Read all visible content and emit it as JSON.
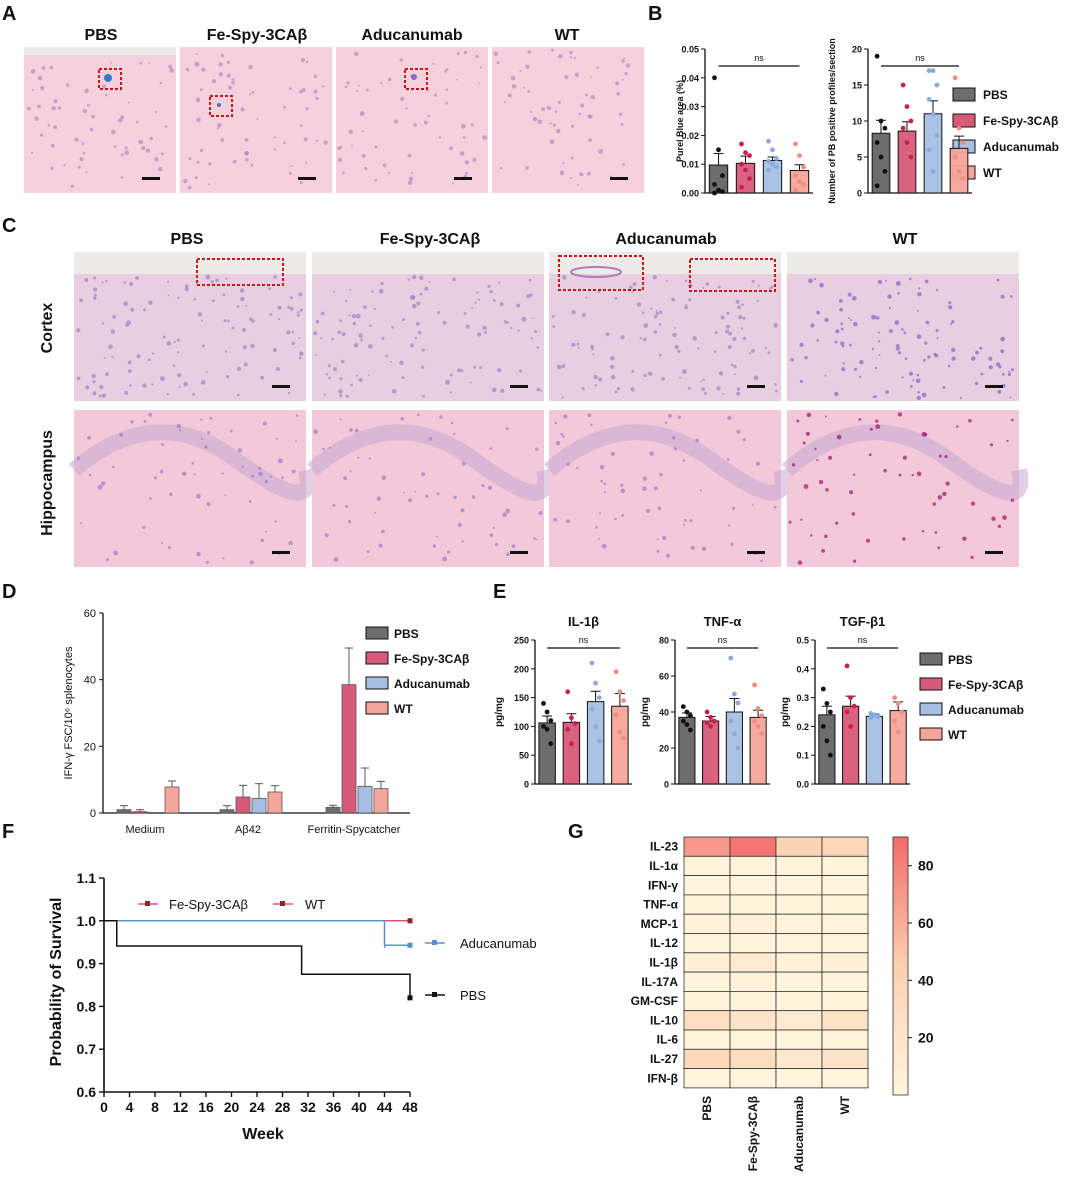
{
  "panel_letters": [
    "A",
    "B",
    "C",
    "D",
    "E",
    "F",
    "G"
  ],
  "colors": {
    "PBS": "#6d6d6d",
    "Fe": "#d85a7a",
    "Adu": "#a8bfe3",
    "WT": "#f5a59a",
    "black": "#111111",
    "hist_bg": "#f3c9d6",
    "hist_cell": "#9a7ac4"
  },
  "legend_labels": [
    "PBS",
    "Fe-Spy-3CAβ",
    "Aducanumab",
    "WT"
  ],
  "panel_a": {
    "groups": [
      "PBS",
      "Fe-Spy-3CAβ",
      "Aducanumab",
      "WT"
    ]
  },
  "panel_c": {
    "groups": [
      "PBS",
      "Fe-Spy-3CAβ",
      "Aducanumab",
      "WT"
    ],
    "rows": [
      "Cortex",
      "Hippocampus"
    ]
  },
  "chart_data": [
    {
      "id": "B1",
      "type": "bar",
      "categories": [
        "PBS",
        "Fe-Spy-3CAβ",
        "Aducanumab",
        "WT"
      ],
      "values": [
        0.0097,
        0.0103,
        0.0113,
        0.0078
      ],
      "errors": [
        0.004,
        0.0025,
        0.0012,
        0.002
      ],
      "points": [
        [
          0.04,
          0.015,
          0.006,
          0.003,
          0.001,
          0.0005,
          0.0
        ],
        [
          0.017,
          0.014,
          0.013,
          0.01,
          0.008,
          0.005,
          0.002
        ],
        [
          0.018,
          0.015,
          0.012,
          0.011,
          0.01,
          0.009,
          0.008
        ],
        [
          0.017,
          0.013,
          0.009,
          0.006,
          0.004,
          0.003,
          0.001
        ]
      ],
      "ylabel": "Purel Blue area (%)",
      "ylim": [
        0,
        0.05
      ],
      "yticks": [
        "0.00",
        "0.01",
        "0.02",
        "0.03",
        "0.04",
        "0.05"
      ],
      "annotation": "ns"
    },
    {
      "id": "B2",
      "type": "bar",
      "categories": [
        "PBS",
        "Fe-Spy-3CAβ",
        "Aducanumab",
        "WT"
      ],
      "values": [
        8.3,
        8.6,
        11.0,
        6.2
      ],
      "errors": [
        1.8,
        1.3,
        1.8,
        1.7
      ],
      "points": [
        [
          19,
          10,
          9,
          7,
          5,
          3,
          1
        ],
        [
          15,
          12,
          10,
          9,
          7,
          5
        ],
        [
          17,
          17,
          15,
          13,
          11,
          8,
          6,
          3
        ],
        [
          16,
          9,
          7,
          5,
          3,
          2
        ]
      ],
      "ylabel": "Number of PB positive profiles/section",
      "ylim": [
        0,
        20
      ],
      "yticks": [
        "0",
        "5",
        "10",
        "15",
        "20"
      ],
      "annotation": "ns"
    },
    {
      "id": "D",
      "type": "bar",
      "categories": [
        "Medium",
        "Aβ42",
        "Ferritin-Spycatcher"
      ],
      "series": [
        {
          "name": "PBS",
          "values": [
            1.0,
            1.0,
            1.7
          ],
          "errors": [
            1.2,
            1.2,
            0.6
          ]
        },
        {
          "name": "Fe-Spy-3CAβ",
          "values": [
            0.4,
            4.8,
            38.5
          ],
          "errors": [
            0.6,
            3.5,
            11.0
          ]
        },
        {
          "name": "Aducanumab",
          "values": [
            0.0,
            4.4,
            8.0
          ],
          "errors": [
            0.0,
            4.4,
            5.5
          ]
        },
        {
          "name": "WT",
          "values": [
            7.8,
            6.3,
            7.3
          ],
          "errors": [
            1.8,
            1.9,
            2.2
          ]
        }
      ],
      "ylabel": "IFN-γ FSC/10⁶ splenocytes",
      "ylim": [
        0,
        60
      ],
      "yticks": [
        "0",
        "20",
        "40",
        "60"
      ]
    },
    {
      "id": "E1",
      "type": "bar",
      "title": "IL-1β",
      "categories": [
        "PBS",
        "Fe-Spy-3CAβ",
        "Aducanumab",
        "WT"
      ],
      "values": [
        106,
        107,
        143,
        135
      ],
      "errors": [
        12,
        15,
        18,
        22
      ],
      "points": [
        [
          140,
          125,
          110,
          100,
          95,
          70
        ],
        [
          160,
          115,
          105,
          95,
          70
        ],
        [
          210,
          175,
          150,
          130,
          100,
          75
        ],
        [
          195,
          160,
          145,
          120,
          90,
          80
        ]
      ],
      "ylabel": "pg/mg",
      "ylim": [
        0,
        250
      ],
      "yticks": [
        "0",
        "50",
        "100",
        "150",
        "200",
        "250"
      ],
      "annotation": "ns"
    },
    {
      "id": "E2",
      "type": "bar",
      "title": "TNF-α",
      "categories": [
        "PBS",
        "Fe-Spy-3CAβ",
        "Aducanumab",
        "WT"
      ],
      "values": [
        37,
        35,
        40,
        37
      ],
      "errors": [
        2.5,
        2.5,
        7.5,
        4
      ],
      "points": [
        [
          43,
          40,
          38,
          35,
          33,
          30
        ],
        [
          40,
          37,
          35,
          34,
          32
        ],
        [
          70,
          50,
          45,
          35,
          28,
          20
        ],
        [
          55,
          42,
          38,
          35,
          32,
          28
        ]
      ],
      "ylabel": "pg/mg",
      "ylim": [
        0,
        80
      ],
      "yticks": [
        "0",
        "20",
        "40",
        "60",
        "80"
      ],
      "annotation": "ns"
    },
    {
      "id": "E3",
      "type": "bar",
      "title": "TGF-β1",
      "categories": [
        "PBS",
        "Fe-Spy-3CAβ",
        "Aducanumab",
        "WT"
      ],
      "values": [
        0.24,
        0.27,
        0.235,
        0.255
      ],
      "errors": [
        0.03,
        0.035,
        0.008,
        0.03
      ],
      "points": [
        [
          0.33,
          0.28,
          0.25,
          0.2,
          0.15,
          0.1
        ],
        [
          0.41,
          0.3,
          0.27,
          0.25,
          0.2
        ],
        [
          0.245,
          0.24,
          0.235,
          0.23
        ],
        [
          0.3,
          0.28,
          0.25,
          0.22,
          0.18
        ]
      ],
      "ylabel": "pg/mg",
      "ylim": [
        0,
        0.5
      ],
      "yticks": [
        "0.0",
        "0.1",
        "0.2",
        "0.3",
        "0.4",
        "0.5"
      ],
      "annotation": "ns"
    },
    {
      "id": "F",
      "type": "line",
      "series": [
        {
          "name": "Fe-Spy-3CAβ",
          "x": [
            0,
            48
          ],
          "y": [
            1.0,
            1.0
          ]
        },
        {
          "name": "WT",
          "x": [
            0,
            48
          ],
          "y": [
            1.0,
            1.0
          ]
        },
        {
          "name": "Aducanumab",
          "x": [
            0,
            44,
            48
          ],
          "y": [
            1.0,
            0.943,
            0.943
          ]
        },
        {
          "name": "PBS",
          "x": [
            0,
            2,
            31,
            48
          ],
          "y": [
            1.0,
            0.941,
            0.875,
            0.82
          ]
        }
      ],
      "xlabel": "Week",
      "ylabel": "Probability of Survival",
      "xlim": [
        0,
        48
      ],
      "ylim": [
        0.6,
        1.1
      ],
      "xticks": [
        "0",
        "4",
        "8",
        "12",
        "16",
        "20",
        "24",
        "28",
        "32",
        "36",
        "40",
        "44",
        "48"
      ],
      "yticks": [
        "0.6",
        "0.7",
        "0.8",
        "0.9",
        "1.0",
        "1.1"
      ]
    },
    {
      "id": "G",
      "type": "heatmap",
      "rows": [
        "IL-23",
        "IL-1α",
        "IFN-γ",
        "TNF-α",
        "MCP-1",
        "IL-12",
        "IL-1β",
        "IL-17A",
        "GM-CSF",
        "IL-10",
        "IL-6",
        "IL-27",
        "IFN-β"
      ],
      "columns": [
        "PBS",
        "Fe-Spy-3CAβ",
        "Aducanumab",
        "WT"
      ],
      "values": [
        [
          70,
          85,
          40,
          38
        ],
        [
          3,
          3,
          3,
          3
        ],
        [
          2,
          2,
          2,
          2
        ],
        [
          4,
          4,
          3,
          3
        ],
        [
          5,
          6,
          4,
          4
        ],
        [
          3,
          3,
          3,
          3
        ],
        [
          8,
          14,
          6,
          7
        ],
        [
          4,
          5,
          3,
          4
        ],
        [
          3,
          3,
          3,
          3
        ],
        [
          28,
          22,
          14,
          24
        ],
        [
          4,
          4,
          3,
          4
        ],
        [
          36,
          30,
          16,
          20
        ],
        [
          2,
          2,
          2,
          2
        ]
      ],
      "colorbar_range": [
        0,
        90
      ],
      "colorbar_ticks": [
        "20",
        "40",
        "60",
        "80"
      ]
    }
  ]
}
